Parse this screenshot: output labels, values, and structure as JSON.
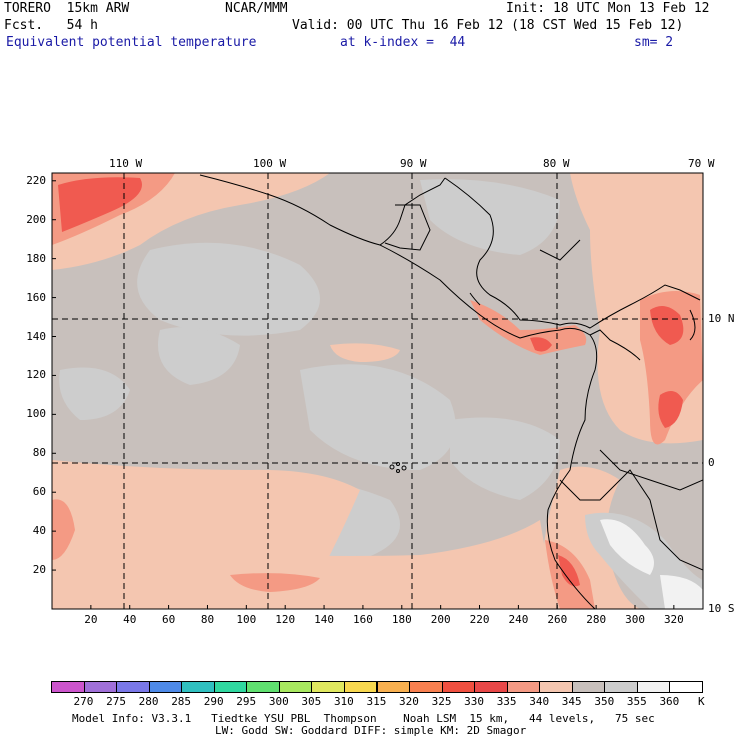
{
  "header": {
    "model": "TORERO  15km ARW",
    "center": "NCAR/MMM",
    "init": "Init: 18 UTC Mon 13 Feb 12",
    "fcst": "Fcst.   54 h",
    "valid": "Valid: 00 UTC Thu 16 Feb 12 (18 CST Wed 15 Feb 12)",
    "field": "Equivalent potential temperature",
    "level": "at k-index =  44",
    "smooth": "sm= 2"
  },
  "map": {
    "lon_labels": [
      "110 W",
      "100 W",
      "90 W",
      "80 W",
      "70 W"
    ],
    "lat_labels": [
      "10 N",
      "0",
      "10 S"
    ],
    "x_ticks": [
      "20",
      "40",
      "60",
      "80",
      "100",
      "120",
      "140",
      "160",
      "180",
      "200",
      "220",
      "240",
      "260",
      "280",
      "300",
      "320"
    ],
    "y_ticks": [
      "220",
      "200",
      "180",
      "160",
      "140",
      "120",
      "100",
      "80",
      "60",
      "40",
      "20"
    ],
    "colors": {
      "background_gray": "#c8c0bc",
      "light_gray": "#cdcdcd",
      "peach": "#f4c6b0",
      "salmon": "#f49a84",
      "red": "#f05a50",
      "white": "#f2f2f2",
      "coast": "#000000",
      "grid": "#000000"
    }
  },
  "colorbar": {
    "labels": [
      "270",
      "275",
      "280",
      "285",
      "290",
      "295",
      "300",
      "305",
      "310",
      "315",
      "320",
      "325",
      "330",
      "335",
      "340",
      "345",
      "350",
      "355",
      "360"
    ],
    "unit": "K",
    "colors": [
      "#cc55cc",
      "#a070d8",
      "#7a78e8",
      "#4e8ae8",
      "#30c0c0",
      "#30d8a0",
      "#60e070",
      "#a8e860",
      "#e0e860",
      "#f8d850",
      "#f8b050",
      "#f88050",
      "#f05040",
      "#e84848",
      "#f49a84",
      "#f4c6b0",
      "#c8c0bc",
      "#cdcdcd",
      "#f2f2f2",
      "#ffffff"
    ]
  },
  "footer": {
    "line1": "Model Info: V3.3.1   Tiedtke YSU PBL  Thompson    Noah LSM  15 km,   44 levels,   75 sec",
    "line2": "LW: Godd SW: Goddard DIFF: simple KM: 2D Smagor"
  }
}
